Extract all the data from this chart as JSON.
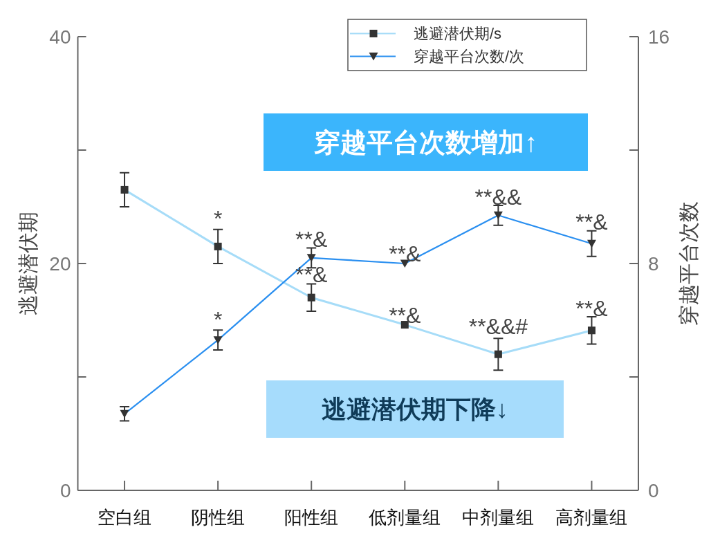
{
  "chart_data": {
    "type": "line",
    "categories": [
      "空白组",
      "阴性组",
      "阳性组",
      "低剂量组",
      "中剂量组",
      "高剂量组"
    ],
    "ylabel": "逃避潜伏期",
    "y2label": "穿越平台次数",
    "ylim": [
      0,
      40
    ],
    "yticks": [
      0,
      {
        "value": 10,
        "label": null
      },
      20,
      {
        "value": 30,
        "label": null
      },
      40
    ],
    "y2lim": [
      0,
      16
    ],
    "y2ticks": [
      0,
      {
        "value": 4,
        "label": null
      },
      8,
      {
        "value": 12,
        "label": null
      },
      16
    ],
    "series": [
      {
        "name": "逃避潜伏期/s",
        "color": "#a6dcf8",
        "marker": "square",
        "values": [
          26.5,
          21.5,
          17.0,
          14.6,
          12.0,
          14.1
        ],
        "errors": [
          1.5,
          1.5,
          1.2,
          null,
          1.4,
          1.2
        ]
      },
      {
        "name": "穿越平台次数/次",
        "color": "#2a8ff0",
        "marker": "triangle",
        "axis": "y2",
        "values": [
          2.7,
          5.3,
          8.2,
          8.0,
          9.7,
          8.7
        ],
        "errors": [
          0.25,
          0.35,
          0.35,
          null,
          0.35,
          0.45
        ]
      }
    ],
    "legend": "top right",
    "annotations": [
      "穿越平台次数增加↑",
      "逃避潜伏期下降↓",
      {
        "text": "*",
        "x": "阴性组",
        "y": 23.1
      },
      {
        "text": "*",
        "x": "阴性组",
        "y": 14.2
      },
      {
        "text": "**&",
        "x": "阳性组",
        "y": 21.3
      },
      {
        "text": "**&",
        "x": "阳性组",
        "y": 18.2
      },
      {
        "text": "**&",
        "x": "低剂量组",
        "y": 20.0
      },
      {
        "text": "**&",
        "x": "低剂量组",
        "y": 14.6
      },
      {
        "text": "**&&",
        "x": "中剂量组",
        "y": 25.0
      },
      {
        "text": "**&&#",
        "x": "中剂量组",
        "y": 13.6
      },
      {
        "text": "**&",
        "x": "高剂量组",
        "y": 22.8
      },
      {
        "text": "**&",
        "x": "高剂量组",
        "y": 15.2
      }
    ]
  }
}
